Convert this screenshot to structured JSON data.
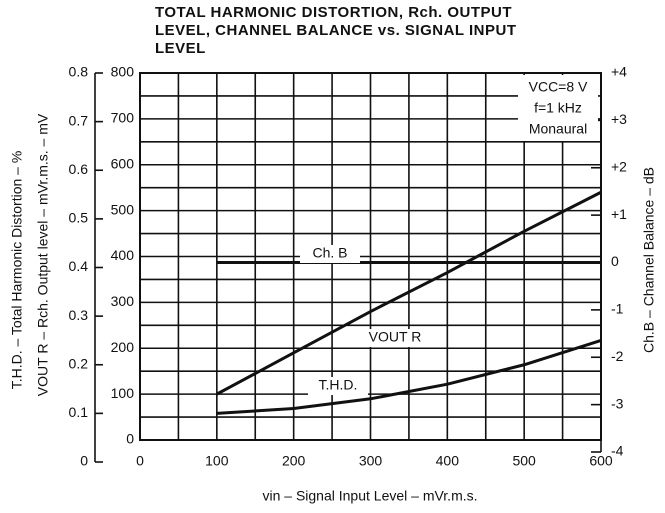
{
  "chart_data": {
    "type": "line",
    "title": [
      "TOTAL HARMONIC DISTORTION, Rch. OUTPUT",
      "LEVEL, CHANNEL BALANCE vs. SIGNAL INPUT",
      "LEVEL"
    ],
    "xlabel": "vin – Signal Input Level – mVr.m.s.",
    "ylabel": "VOUT R – Rch. Output level – mVr.m.s. – mV",
    "y2label": "Ch.B – Channel Balance – dB",
    "y3label": "T.H.D. – Total Harmonic Distortion – %",
    "x": [
      100,
      200,
      300,
      400,
      500,
      600
    ],
    "series": [
      {
        "name": "VOUT R",
        "color": "#111111",
        "axis": "y",
        "values": [
          100,
          190,
          280,
          365,
          455,
          540
        ]
      },
      {
        "name": "T.H.D.",
        "color": "#111111",
        "axis": "y3",
        "values": [
          0.1,
          0.11,
          0.13,
          0.16,
          0.2,
          0.25
        ]
      },
      {
        "name": "Ch. B",
        "color": "#111111",
        "axis": "y2",
        "values": [
          0,
          0,
          0,
          0,
          0,
          0
        ]
      }
    ],
    "annotations": [
      "VCC=8 V",
      "f=1 kHz",
      "Monaural"
    ],
    "xlim": [
      0,
      600
    ],
    "xticks": [
      0,
      100,
      200,
      300,
      400,
      500,
      600
    ],
    "ylim": [
      0,
      800
    ],
    "yticks": [
      0,
      100,
      200,
      300,
      400,
      500,
      600,
      700,
      800
    ],
    "y2lim": [
      -4,
      4
    ],
    "y2ticks": [
      {
        "value": -4,
        "label": "-4"
      },
      {
        "value": -3,
        "label": "-3"
      },
      {
        "value": -2,
        "label": "-2"
      },
      {
        "value": -1,
        "label": "-1"
      },
      0,
      {
        "value": 1,
        "label": "+1"
      },
      {
        "value": 2,
        "label": "+2"
      },
      {
        "value": 3,
        "label": "+3"
      },
      {
        "value": 4,
        "label": "+4"
      }
    ],
    "y3lim": [
      0,
      0.8
    ],
    "y3ticks": [
      0,
      0.1,
      0.2,
      0.3,
      0.4,
      0.5,
      0.6,
      0.7,
      0.8
    ],
    "grid": true
  }
}
